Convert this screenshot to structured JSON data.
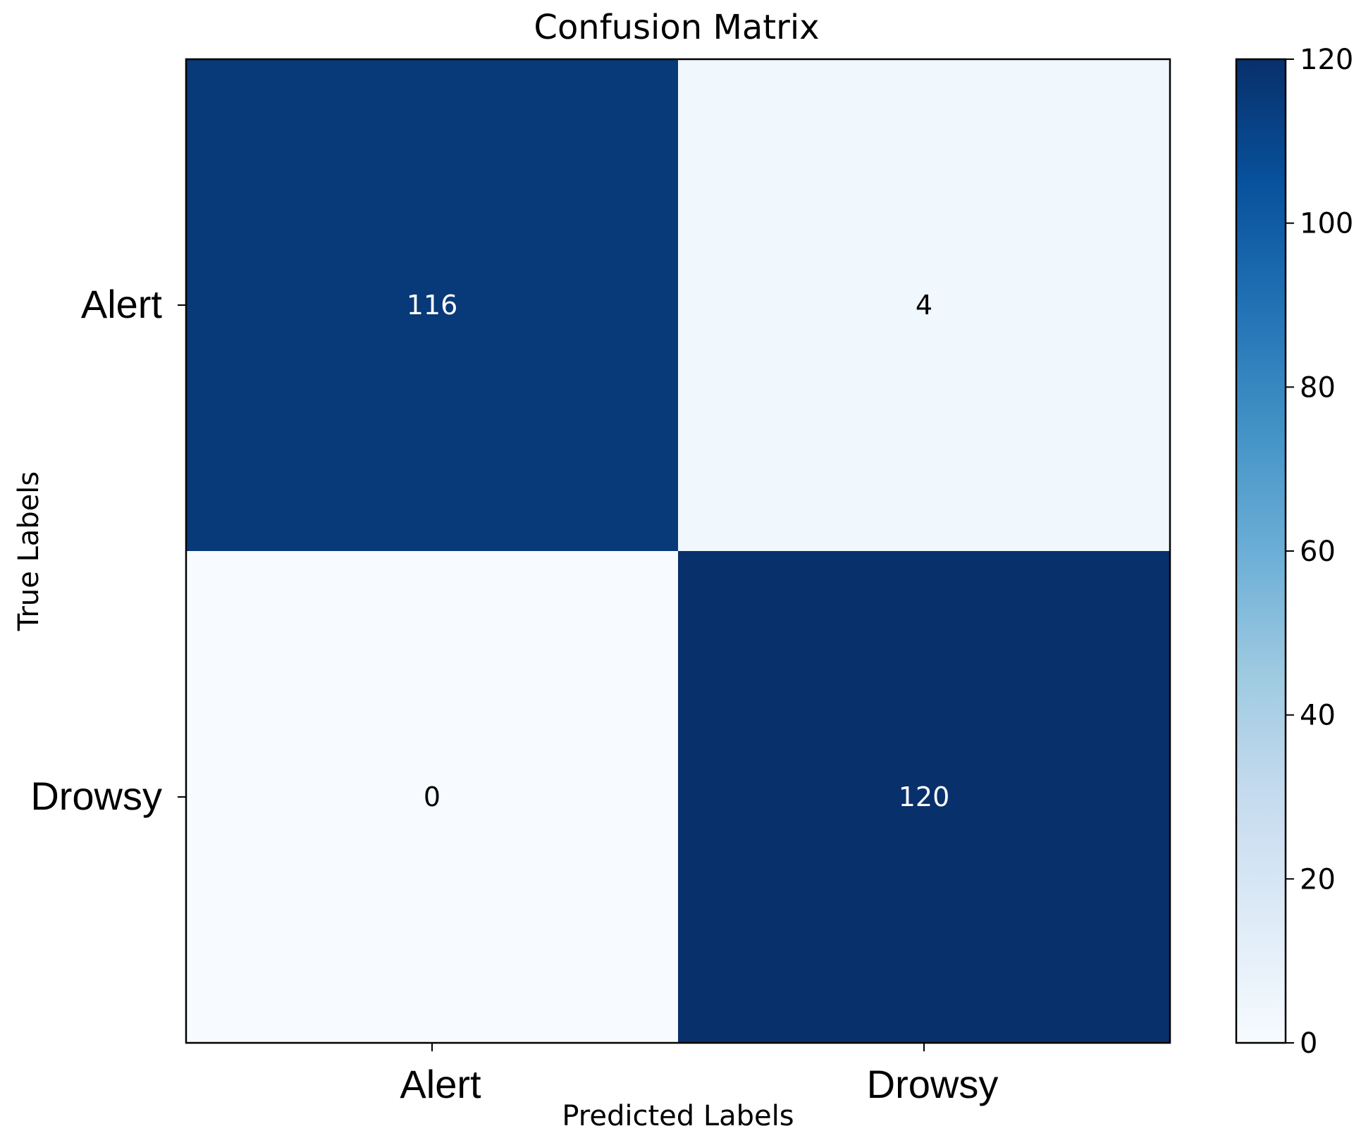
{
  "chart_data": {
    "type": "heatmap",
    "title": "Confusion Matrix",
    "xlabel": "Predicted Labels",
    "ylabel": "True Labels",
    "x_categories": [
      "Alert",
      "Drowsy"
    ],
    "y_categories": [
      "Alert",
      "Drowsy"
    ],
    "values": [
      [
        116,
        4
      ],
      [
        0,
        120
      ]
    ],
    "colorbar": {
      "min": 0,
      "max": 120,
      "ticks": [
        "0",
        "20",
        "40",
        "60",
        "80",
        "100",
        "120"
      ]
    },
    "colormap": "Blues",
    "colors": {
      "low": "#f7fbff",
      "high": "#08306b",
      "text_on_dark": "#ffffff",
      "text_on_light": "#000000"
    },
    "grid": false
  }
}
